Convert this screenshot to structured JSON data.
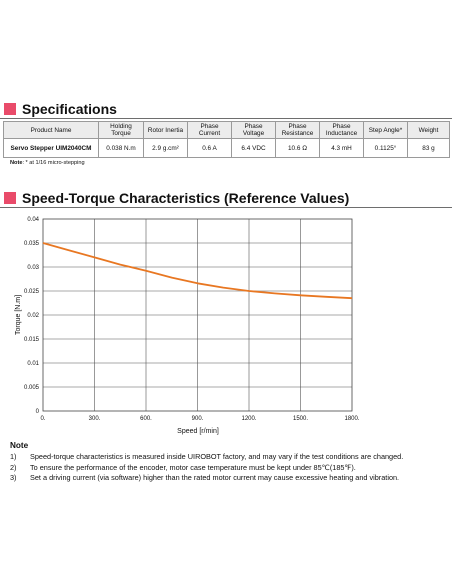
{
  "specifications": {
    "title": "Specifications",
    "headers": [
      "Product Name",
      "Holding Torque",
      "Rotor Inertia",
      "Phase Current",
      "Phase Voltage",
      "Phase Resistance",
      "Phase Inductance",
      "Step Angle*",
      "Weight"
    ],
    "row": [
      "Servo Stepper UIM2040CM",
      "0.038 N.m",
      "2.9 g.cm²",
      "0.6 A",
      "6.4 VDC",
      "10.6 Ω",
      "4.3 mH",
      "0.1125°",
      "83 g"
    ],
    "note_label": "Note",
    "note_text": ": * at 1/16 micro-stepping"
  },
  "characteristics": {
    "title": "Speed-Torque Characteristics (Reference Values)"
  },
  "chart_data": {
    "type": "line",
    "title": "",
    "xlabel": "Speed [r/min]",
    "ylabel": "Torque [N.m]",
    "xlim": [
      0,
      1800
    ],
    "ylim": [
      0,
      0.04
    ],
    "x_ticks": [
      "0.",
      "300.",
      "600.",
      "900.",
      "1200.",
      "1500.",
      "1800."
    ],
    "y_ticks": [
      "0",
      "0.005",
      "0.01",
      "0.015",
      "0.02",
      "0.025",
      "0.03",
      "0.035",
      "0.04"
    ],
    "grid": true,
    "line_color": "#e87722",
    "series": [
      {
        "x": [
          0,
          150,
          300,
          450,
          600,
          750,
          900,
          1050,
          1200,
          1350,
          1500,
          1650,
          1800
        ],
        "y": [
          0.035,
          0.0335,
          0.032,
          0.0305,
          0.0292,
          0.0278,
          0.0266,
          0.0257,
          0.025,
          0.0245,
          0.0241,
          0.0238,
          0.0235
        ]
      }
    ]
  },
  "notes": {
    "heading": "Note",
    "items": [
      {
        "num": "1)",
        "text": "Speed-torque characteristics is measured inside UIROBOT factory, and may vary if the test conditions are changed."
      },
      {
        "num": "2)",
        "text": "To ensure the performance of the encoder, motor case temperature must be kept under 85℃(185℉)."
      },
      {
        "num": "3)",
        "text": "Set a driving current (via software) higher than the rated motor current may cause excessive heating and vibration."
      }
    ]
  }
}
